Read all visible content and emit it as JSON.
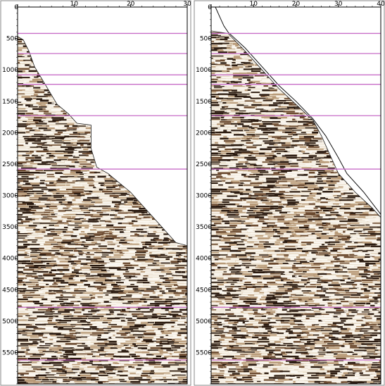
{
  "panels": [
    {
      "id": "left",
      "x_axis": {
        "min": 0,
        "max": 30,
        "ticks": [
          0,
          10,
          20,
          30
        ],
        "tick_labels": [
          "0",
          "10",
          "20",
          "30"
        ]
      },
      "y_axis": {
        "min": 0,
        "max": 6000,
        "ticks": [
          0,
          500,
          1000,
          1500,
          2000,
          2500,
          3000,
          3500,
          4000,
          4500,
          5000,
          5500
        ],
        "tick_labels": [
          "0",
          "500",
          "1000",
          "1500",
          "2000",
          "2500",
          "3000",
          "3500",
          "4000",
          "4500",
          "5000",
          "5500"
        ]
      },
      "horizon_times": [
        420,
        740,
        1080,
        1230,
        1730,
        2580,
        4780,
        5620
      ],
      "mute_boundary": [
        [
          0,
          470
        ],
        [
          1,
          520
        ],
        [
          2,
          700
        ],
        [
          3,
          950
        ],
        [
          5,
          1250
        ],
        [
          7,
          1550
        ],
        [
          9,
          1700
        ],
        [
          10.5,
          1850
        ],
        [
          13,
          1880
        ],
        [
          13,
          2250
        ],
        [
          14,
          2550
        ],
        [
          16,
          2650
        ],
        [
          18,
          2800
        ],
        [
          20,
          2950
        ],
        [
          22,
          3150
        ],
        [
          24,
          3350
        ],
        [
          26,
          3550
        ],
        [
          28,
          3750
        ],
        [
          30,
          3800
        ]
      ],
      "horizon_color": "#c86ec8"
    },
    {
      "id": "right",
      "x_axis": {
        "min": 0,
        "max": 40,
        "ticks": [
          0,
          10,
          20,
          30,
          40
        ],
        "tick_labels": [
          "0",
          "10",
          "20",
          "30",
          "40"
        ]
      },
      "y_axis": {
        "min": 0,
        "max": 6000,
        "ticks": [
          0,
          500,
          1000,
          1500,
          2000,
          2500,
          3000,
          3500,
          4000,
          4500,
          5000,
          5500
        ],
        "tick_labels": [
          "0",
          "500",
          "1000",
          "1500",
          "2000",
          "2500",
          "3000",
          "3500",
          "4000",
          "4500",
          "5000",
          "5500"
        ]
      },
      "horizon_times": [
        420,
        740,
        1080,
        1230,
        1730,
        2580,
        4780,
        5620
      ],
      "mute_boundary": [
        [
          0,
          380
        ],
        [
          4,
          420
        ],
        [
          8,
          700
        ],
        [
          12,
          1000
        ],
        [
          16,
          1300
        ],
        [
          20,
          1550
        ],
        [
          24,
          1800
        ],
        [
          26,
          2050
        ],
        [
          28,
          2350
        ],
        [
          30,
          2650
        ],
        [
          34,
          2950
        ],
        [
          38,
          3200
        ],
        [
          40,
          3350
        ]
      ],
      "overlay_curve": [
        [
          1,
          0
        ],
        [
          2,
          150
        ],
        [
          3,
          300
        ],
        [
          4,
          400
        ],
        [
          8,
          650
        ],
        [
          12,
          950
        ],
        [
          16,
          1250
        ],
        [
          20,
          1500
        ],
        [
          24,
          1780
        ],
        [
          27,
          2050
        ],
        [
          30,
          2400
        ],
        [
          32,
          2650
        ],
        [
          36,
          2950
        ],
        [
          40,
          3300
        ]
      ],
      "horizon_color": "#c86ec8"
    }
  ]
}
